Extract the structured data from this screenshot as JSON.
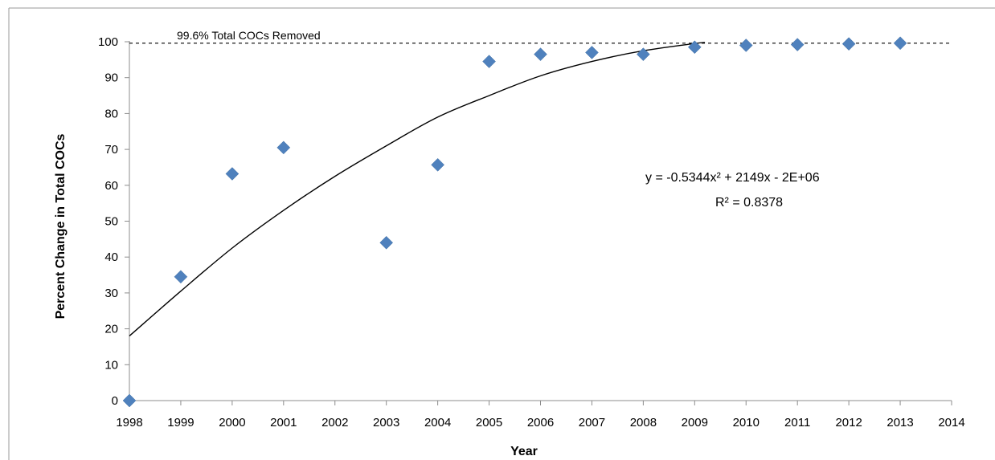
{
  "chart_data": {
    "type": "scatter",
    "xlabel": "Year",
    "ylabel": "Percent Change in Total COCs",
    "xlim": [
      1998,
      2014
    ],
    "ylim": [
      0,
      100
    ],
    "xticks": [
      "1998",
      "1999",
      "2000",
      "2001",
      "2002",
      "2003",
      "2004",
      "2005",
      "2006",
      "2007",
      "2008",
      "2009",
      "2010",
      "2011",
      "2012",
      "2013",
      "2014"
    ],
    "yticks": [
      "0",
      "10",
      "20",
      "30",
      "40",
      "50",
      "60",
      "70",
      "80",
      "90",
      "100"
    ],
    "grid": false,
    "legend": "none",
    "series": [
      {
        "x": [
          1998,
          1999,
          2000,
          2001,
          2003,
          2004,
          2005,
          2006,
          2007,
          2008,
          2009,
          2010,
          2011,
          2012,
          2013
        ],
        "values": [
          0,
          34.5,
          63.2,
          70.5,
          44,
          65.7,
          94.5,
          96.5,
          97,
          96.5,
          98.5,
          99,
          99.2,
          99.4,
          99.6
        ],
        "color": "#4F81BD",
        "marker": "diamond"
      }
    ],
    "trendline": {
      "type": "polynomial-2",
      "color": "#000000",
      "x": [
        1998,
        1999,
        2000,
        2001,
        2002,
        2003,
        2004,
        2005,
        2006,
        2007,
        2008,
        2009,
        2009.2
      ],
      "values": [
        18,
        30.5,
        42.5,
        53,
        62.5,
        71,
        79,
        85,
        90.5,
        94.5,
        97.5,
        99.5,
        99.8
      ],
      "equation": "y = -0.5344x² + 2149x - 2E+06",
      "r_squared": "R² = 0.8378"
    },
    "reference_line": {
      "y": 99.6,
      "style": "dashed",
      "label": "99.6% Total COCs Removed"
    }
  }
}
